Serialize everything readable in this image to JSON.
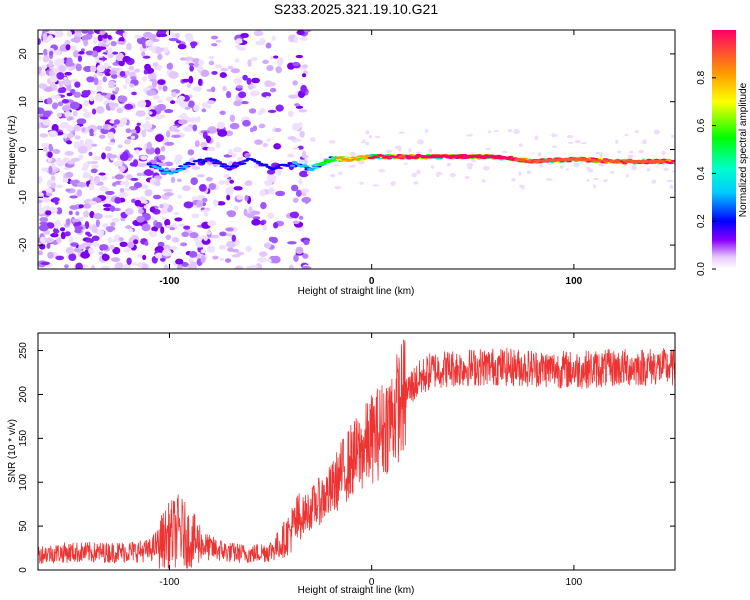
{
  "title": "S233.2025.321.19.10.G21",
  "chart_data": [
    {
      "type": "heatmap",
      "xlabel": "Height of straight line (km)",
      "ylabel": "Frequency (Hz)",
      "xlim": [
        -165,
        150
      ],
      "ylim": [
        -25,
        25
      ],
      "xticks": [
        -100,
        0,
        100
      ],
      "yticks": [
        -20,
        -10,
        0,
        10,
        20
      ],
      "colorbar": {
        "label": "Normalized spectral amplitude",
        "ticks": [
          "0.0",
          "0.2",
          "0.4",
          "0.6",
          "0.8"
        ],
        "range": [
          0,
          1
        ]
      },
      "ridge": {
        "description_free": true,
        "x": [
          -110,
          -100,
          -90,
          -80,
          -70,
          -60,
          -50,
          -40,
          -30,
          -20,
          -10,
          0,
          10,
          20,
          40,
          60,
          80,
          100,
          120,
          140,
          150
        ],
        "frequency": [
          -3,
          -5,
          -3,
          -2,
          -4,
          -2,
          -4,
          -3,
          -4,
          -2,
          -2,
          -1.5,
          -1.5,
          -1.5,
          -1.5,
          -1.5,
          -2.5,
          -2,
          -2.5,
          -2.5,
          -2.5
        ],
        "amplitude": [
          0.3,
          0.35,
          0.3,
          0.25,
          0.3,
          0.3,
          0.3,
          0.3,
          0.4,
          0.6,
          0.7,
          0.8,
          0.85,
          0.95,
          1.0,
          0.95,
          0.9,
          0.9,
          0.9,
          0.9,
          0.85
        ]
      }
    },
    {
      "type": "line",
      "xlabel": "Height of straight line (km)",
      "ylabel": "SNR (10 * v/v)",
      "xlim": [
        -165,
        150
      ],
      "ylim": [
        0,
        270
      ],
      "xticks": [
        -100,
        0,
        100
      ],
      "yticks": [
        0,
        50,
        100,
        150,
        200,
        250
      ],
      "series": [
        {
          "name": "SNR",
          "color": "#ee3333",
          "x": [
            -165,
            -150,
            -130,
            -110,
            -100,
            -95,
            -90,
            -80,
            -70,
            -60,
            -50,
            -45,
            -40,
            -35,
            -30,
            -25,
            -20,
            -15,
            -10,
            -5,
            0,
            5,
            10,
            15,
            20,
            25,
            30,
            40,
            60,
            80,
            100,
            120,
            140,
            150
          ],
          "values": [
            18,
            20,
            20,
            22,
            40,
            45,
            35,
            25,
            20,
            18,
            22,
            30,
            45,
            60,
            70,
            80,
            90,
            110,
            125,
            135,
            150,
            160,
            175,
            195,
            210,
            220,
            228,
            230,
            232,
            230,
            228,
            230,
            232,
            230
          ]
        }
      ]
    }
  ]
}
